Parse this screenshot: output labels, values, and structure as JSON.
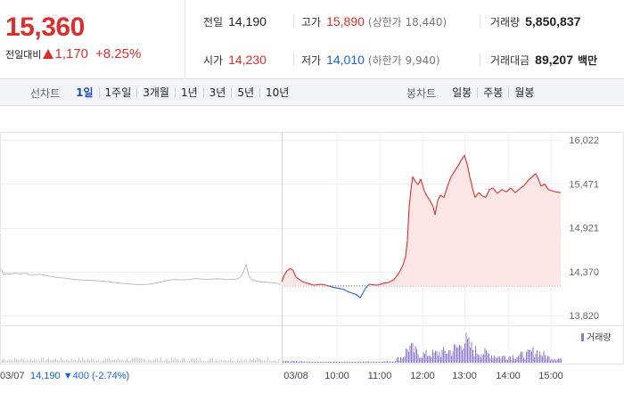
{
  "quote": {
    "price": "15,360",
    "change_label": "전일대비",
    "change": "1,170",
    "change_rate": "+8.25%"
  },
  "info": {
    "prev_label": "전일",
    "prev": "14,190",
    "high_label": "고가",
    "high": "15,890",
    "upper_limit": "(상한가 18,440)",
    "volume_label": "거래량",
    "volume": "5,850,837",
    "open_label": "시가",
    "open": "14,230",
    "low_label": "저가",
    "low": "14,010",
    "lower_limit": "(하한가 9,940)",
    "amount_label": "거래대금",
    "amount": "89,207",
    "amount_unit": "백만"
  },
  "tabs": {
    "line_title": "선차트",
    "line": [
      "1일",
      "1주일",
      "3개월",
      "1년",
      "3년",
      "5년",
      "10년"
    ],
    "line_active": 0,
    "candle_title": "봉차트",
    "candle": [
      "일봉",
      "주봉",
      "월봉"
    ]
  },
  "colors": {
    "up": "#d82f2f",
    "down": "#1a61d6",
    "prev_day": "#bdbdbd",
    "volume": "#8f7bc9",
    "fill": "#fde6e6"
  },
  "chart_data": {
    "type": "line",
    "y_ticks": [
      "16,022",
      "15,471",
      "14,921",
      "14,370",
      "13,820"
    ],
    "y_tick_values": [
      16022,
      15471,
      14921,
      14370,
      13820
    ],
    "ylim": [
      13820,
      16022
    ],
    "baseline": 14190,
    "x_ticks": [
      "03/08",
      "10:00",
      "11:00",
      "12:00",
      "13:00",
      "14:00",
      "15:00"
    ],
    "prev_day_label": "03/07",
    "prev_day_close": "14,190",
    "prev_day_change": "▼400",
    "prev_day_rate": "(-2.74%)",
    "volume_label": "거래량",
    "prev_series": [
      [
        0,
        14400
      ],
      [
        2,
        14390
      ],
      [
        4,
        14330
      ],
      [
        8,
        14345
      ],
      [
        12,
        14335
      ],
      [
        16,
        14355
      ],
      [
        22,
        14340
      ],
      [
        28,
        14350
      ],
      [
        35,
        14325
      ],
      [
        45,
        14338
      ],
      [
        55,
        14315
      ],
      [
        62,
        14300
      ],
      [
        72,
        14290
      ],
      [
        85,
        14270
      ],
      [
        100,
        14262
      ],
      [
        115,
        14250
      ],
      [
        130,
        14230
      ],
      [
        145,
        14215
      ],
      [
        158,
        14205
      ],
      [
        168,
        14212
      ],
      [
        178,
        14232
      ],
      [
        186,
        14255
      ],
      [
        195,
        14272
      ],
      [
        208,
        14266
      ],
      [
        220,
        14284
      ],
      [
        232,
        14272
      ],
      [
        244,
        14280
      ],
      [
        255,
        14270
      ],
      [
        265,
        14275
      ],
      [
        270,
        14302
      ],
      [
        273,
        14365
      ],
      [
        276,
        14460
      ],
      [
        279,
        14320
      ],
      [
        282,
        14270
      ],
      [
        287,
        14255
      ],
      [
        292,
        14242
      ],
      [
        300,
        14236
      ],
      [
        310,
        14226
      ],
      [
        315,
        14210
      ]
    ],
    "today_series": [
      [
        316,
        14240
      ],
      [
        318,
        14310
      ],
      [
        322,
        14380
      ],
      [
        326,
        14410
      ],
      [
        329,
        14380
      ],
      [
        332,
        14300
      ],
      [
        336,
        14270
      ],
      [
        340,
        14240
      ],
      [
        346,
        14220
      ],
      [
        352,
        14200
      ],
      [
        360,
        14210
      ],
      [
        366,
        14200
      ],
      [
        370,
        14185
      ],
      [
        375,
        14170
      ],
      [
        380,
        14160
      ],
      [
        385,
        14150
      ],
      [
        390,
        14120
      ],
      [
        395,
        14100
      ],
      [
        400,
        14080
      ],
      [
        404,
        14040
      ],
      [
        407,
        14100
      ],
      [
        410,
        14160
      ],
      [
        414,
        14210
      ],
      [
        418,
        14205
      ],
      [
        424,
        14200
      ],
      [
        430,
        14225
      ],
      [
        436,
        14235
      ],
      [
        442,
        14270
      ],
      [
        448,
        14360
      ],
      [
        452,
        14450
      ],
      [
        455,
        14560
      ],
      [
        457,
        14760
      ],
      [
        459,
        15180
      ],
      [
        461,
        15400
      ],
      [
        463,
        15560
      ],
      [
        466,
        15500
      ],
      [
        469,
        15460
      ],
      [
        472,
        15530
      ],
      [
        476,
        15380
      ],
      [
        480,
        15300
      ],
      [
        483,
        15250
      ],
      [
        486,
        15180
      ],
      [
        488,
        15080
      ],
      [
        491,
        15260
      ],
      [
        494,
        15330
      ],
      [
        498,
        15300
      ],
      [
        502,
        15440
      ],
      [
        506,
        15560
      ],
      [
        510,
        15630
      ],
      [
        514,
        15700
      ],
      [
        518,
        15780
      ],
      [
        521,
        15830
      ],
      [
        524,
        15720
      ],
      [
        527,
        15560
      ],
      [
        530,
        15420
      ],
      [
        533,
        15300
      ],
      [
        537,
        15360
      ],
      [
        541,
        15320
      ],
      [
        545,
        15300
      ],
      [
        549,
        15400
      ],
      [
        553,
        15420
      ],
      [
        558,
        15350
      ],
      [
        563,
        15400
      ],
      [
        568,
        15370
      ],
      [
        573,
        15420
      ],
      [
        578,
        15360
      ],
      [
        583,
        15410
      ],
      [
        588,
        15450
      ],
      [
        593,
        15520
      ],
      [
        597,
        15560
      ],
      [
        601,
        15600
      ],
      [
        604,
        15530
      ],
      [
        607,
        15440
      ],
      [
        611,
        15470
      ],
      [
        615,
        15400
      ],
      [
        620,
        15380
      ],
      [
        624,
        15370
      ],
      [
        629,
        15360
      ]
    ],
    "today_volume_profile": [
      [
        316,
        0.06
      ],
      [
        345,
        0.03
      ],
      [
        400,
        0.03
      ],
      [
        440,
        0.05
      ],
      [
        452,
        0.25
      ],
      [
        458,
        0.6
      ],
      [
        464,
        0.45
      ],
      [
        472,
        0.3
      ],
      [
        490,
        0.35
      ],
      [
        505,
        0.45
      ],
      [
        515,
        0.6
      ],
      [
        519,
        0.95
      ],
      [
        524,
        0.7
      ],
      [
        532,
        0.45
      ],
      [
        545,
        0.35
      ],
      [
        560,
        0.22
      ],
      [
        575,
        0.25
      ],
      [
        590,
        0.3
      ],
      [
        600,
        0.45
      ],
      [
        606,
        0.35
      ],
      [
        615,
        0.2
      ],
      [
        629,
        0.15
      ]
    ]
  }
}
